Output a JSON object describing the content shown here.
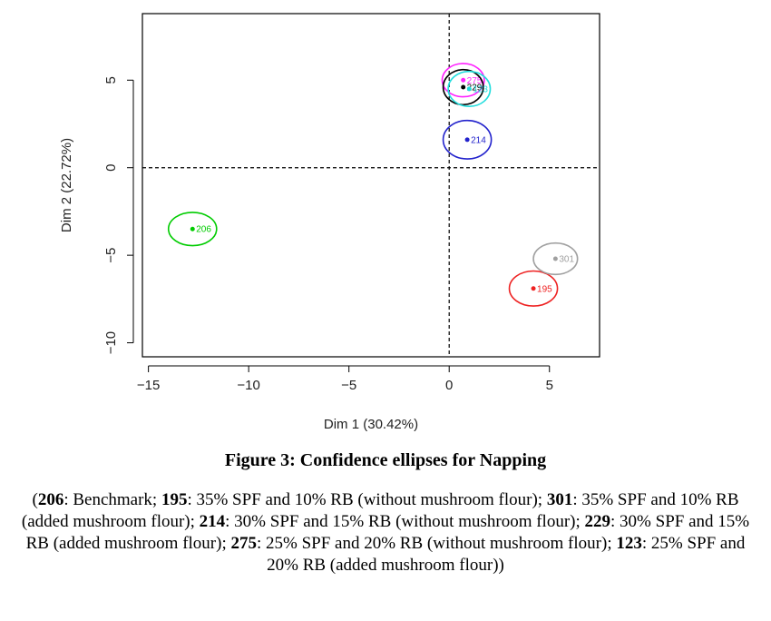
{
  "chart_data": {
    "type": "scatter",
    "xlabel": "Dim 1 (30.42%)",
    "ylabel": "Dim 2 (22.72%)",
    "xlim": [
      -15.3,
      7.5
    ],
    "ylim": [
      -10.8,
      8.8
    ],
    "xticks": [
      -15,
      -10,
      -5,
      0,
      5
    ],
    "yticks": [
      -10,
      -5,
      0,
      5
    ],
    "grid": false,
    "reference_lines": [
      {
        "axis": "x",
        "value": 0,
        "style": "dashed"
      },
      {
        "axis": "y",
        "value": 0,
        "style": "dashed"
      }
    ],
    "points": [
      {
        "label": "206",
        "x": -12.8,
        "y": -3.5,
        "ex": 1.2,
        "ey": 0.95,
        "color": "#00cc00"
      },
      {
        "label": "195",
        "x": 4.2,
        "y": -6.9,
        "ex": 1.2,
        "ey": 1.0,
        "color": "#ee2222"
      },
      {
        "label": "301",
        "x": 5.3,
        "y": -5.2,
        "ex": 1.1,
        "ey": 0.9,
        "color": "#a0a0a0"
      },
      {
        "label": "214",
        "x": 0.9,
        "y": 1.6,
        "ex": 1.2,
        "ey": 1.1,
        "color": "#2222cc"
      },
      {
        "label": "275",
        "x": 0.7,
        "y": 5.0,
        "ex": 1.05,
        "ey": 0.95,
        "color": "#ff22ff"
      },
      {
        "label": "229",
        "x": 0.7,
        "y": 4.6,
        "ex": 1.0,
        "ey": 1.0,
        "color": "#000000"
      },
      {
        "label": "123",
        "x": 1.0,
        "y": 4.5,
        "ex": 1.05,
        "ey": 1.0,
        "color": "#22dddd"
      }
    ]
  },
  "figure_title": "Figure 3: Confidence ellipses for Napping",
  "caption": [
    {
      "b": "206",
      "t": ": Benchmark; "
    },
    {
      "b": "195",
      "t": ": 35% SPF and 10% RB (without mushroom flour); "
    },
    {
      "b": "301",
      "t": ": 35% SPF and 10% RB (added mushroom flour); "
    },
    {
      "b": "214",
      "t": ": 30% SPF and 15% RB (without mushroom flour); "
    },
    {
      "b": "229",
      "t": ": 30% SPF and 15% RB (added mushroom flour); "
    },
    {
      "b": "275",
      "t": ": 25% SPF and 20% RB (without mushroom flour); "
    },
    {
      "b": "123",
      "t": ": 25% SPF and 20% RB (added mushroom flour)"
    }
  ]
}
